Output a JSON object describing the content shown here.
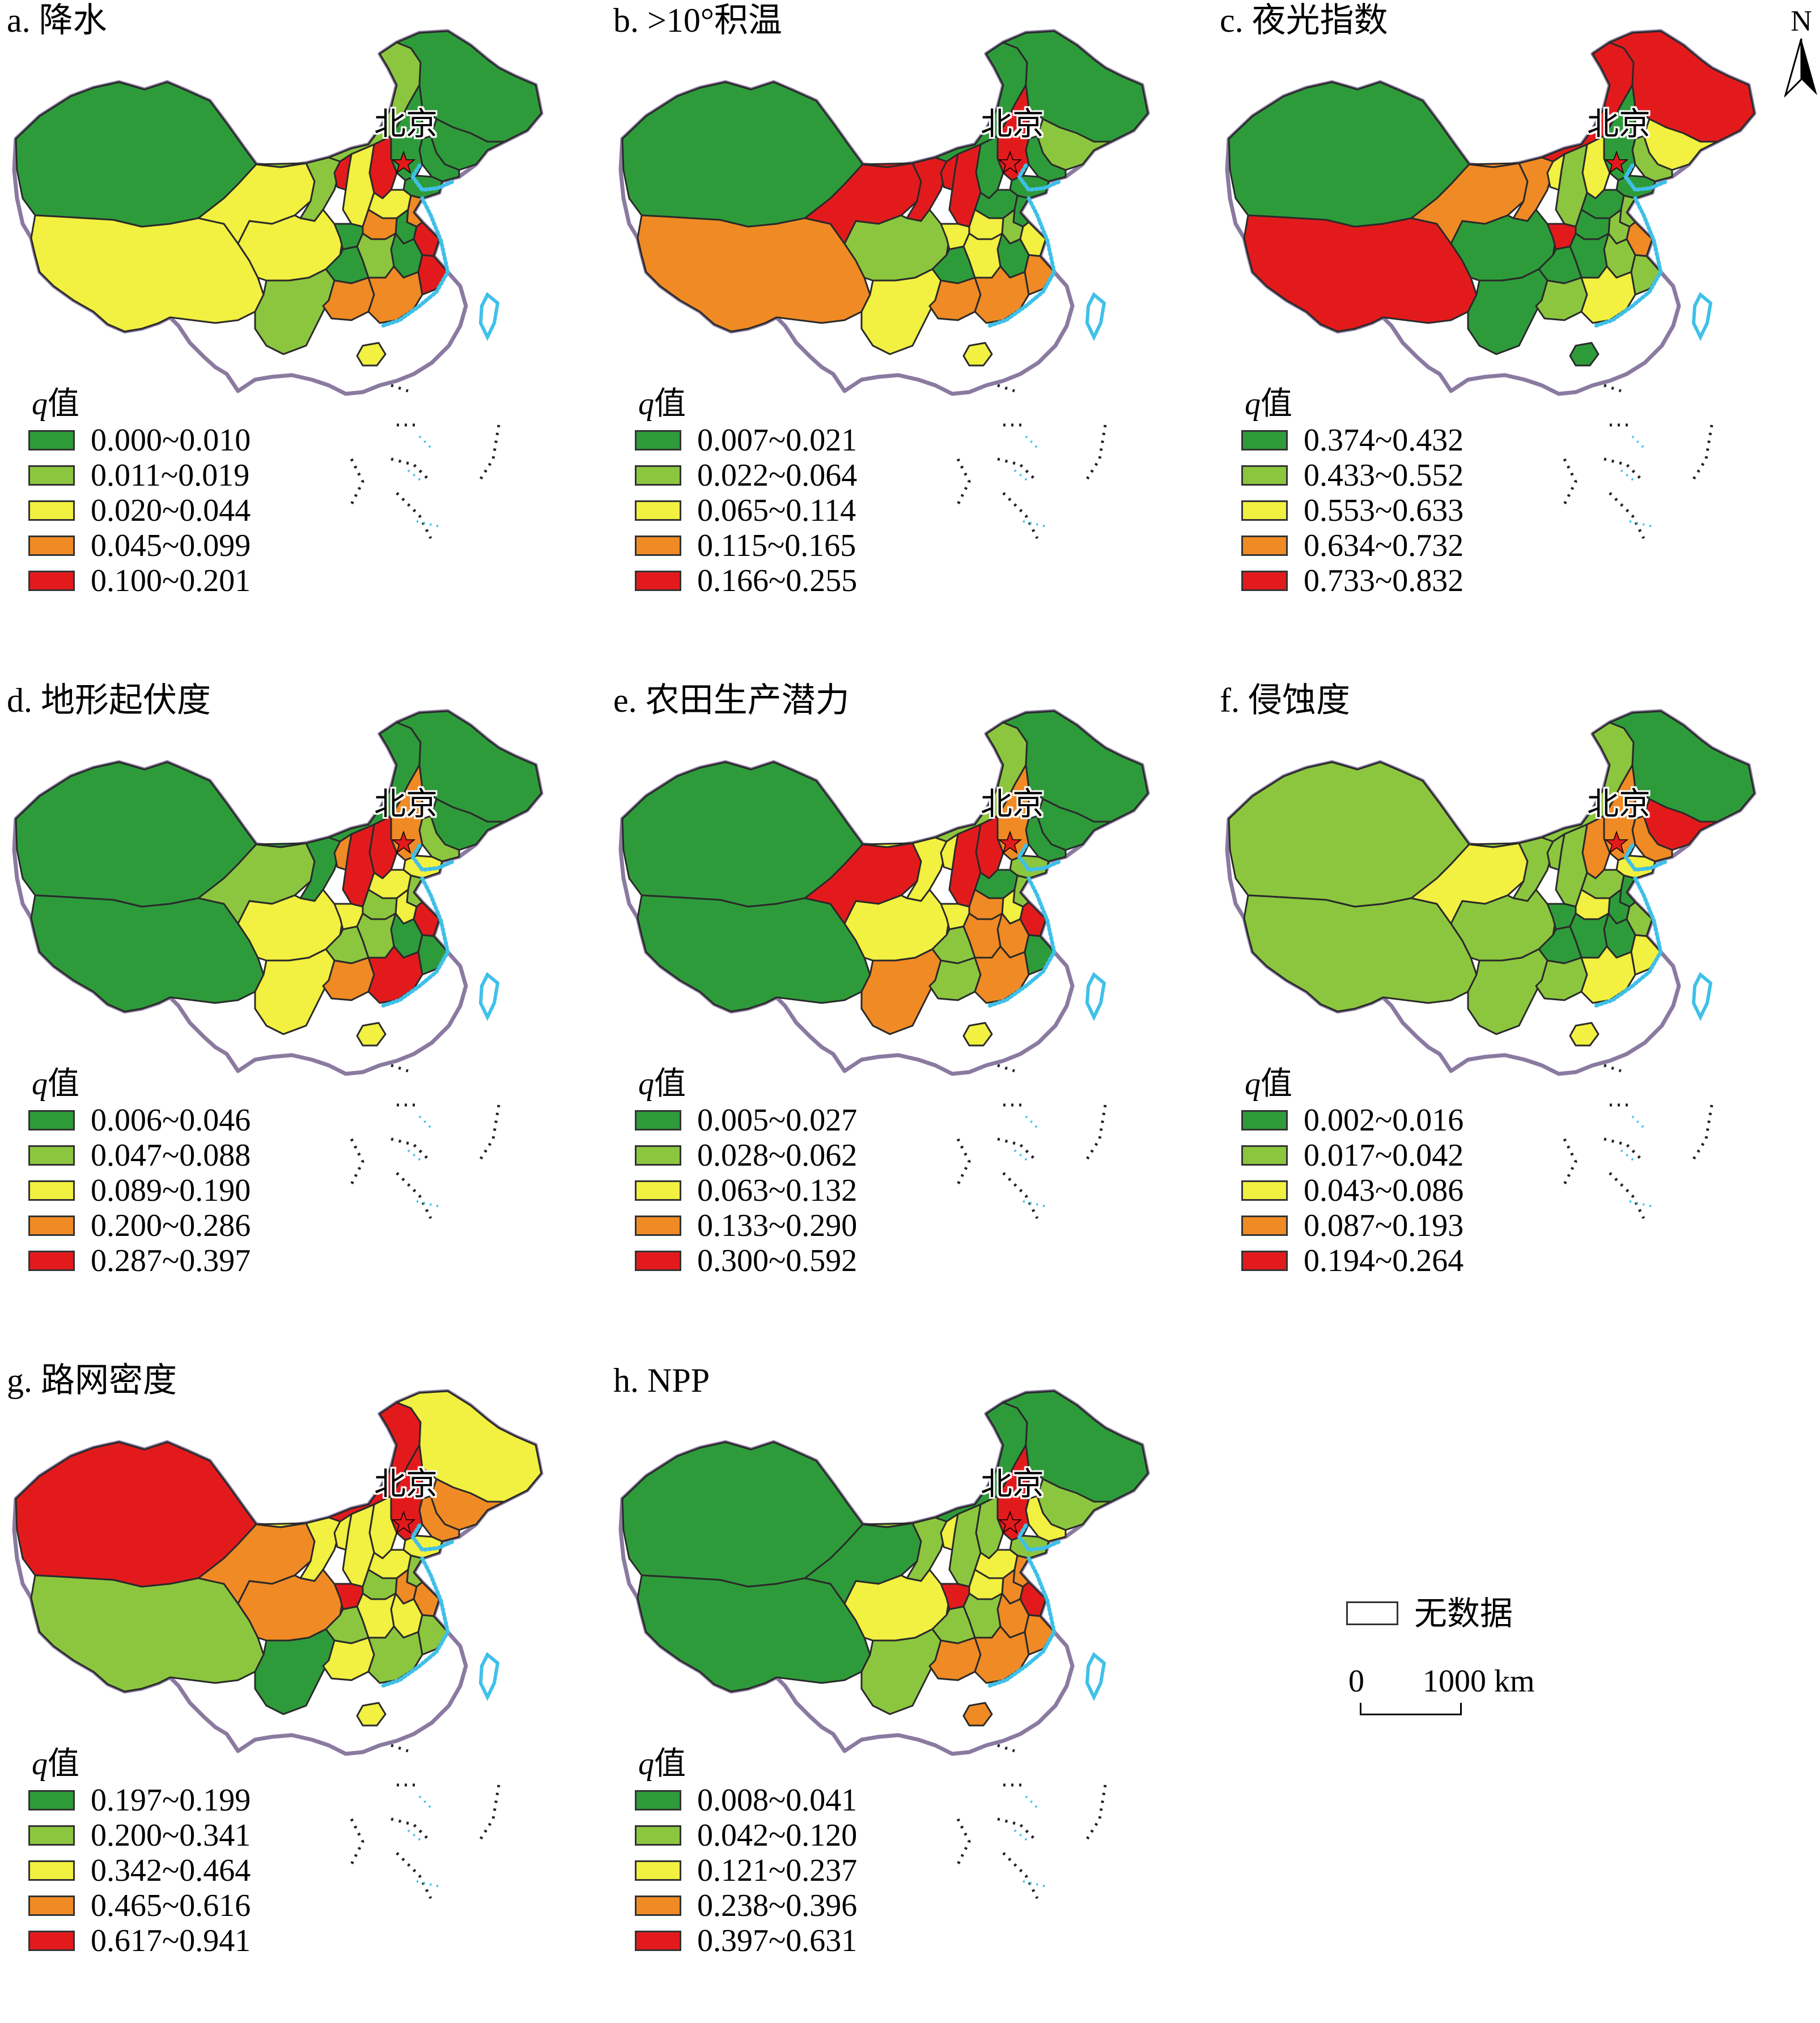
{
  "beijing_label": "北京",
  "legend_title_q": "q",
  "legend_title_rest": "值",
  "class_colors": [
    "#2e9b3b",
    "#8cc63f",
    "#f2f040",
    "#f08a24",
    "#e31a1c"
  ],
  "panels": [
    {
      "id": "a",
      "title": "a. 降水",
      "classes": [
        "0.000~0.010",
        "0.011~0.019",
        "0.020~0.044",
        "0.045~0.099",
        "0.100~0.201"
      ]
    },
    {
      "id": "b",
      "title": "b. >10°积温",
      "classes": [
        "0.007~0.021",
        "0.022~0.064",
        "0.065~0.114",
        "0.115~0.165",
        "0.166~0.255"
      ]
    },
    {
      "id": "c",
      "title": "c. 夜光指数",
      "classes": [
        "0.374~0.432",
        "0.433~0.552",
        "0.553~0.633",
        "0.634~0.732",
        "0.733~0.832"
      ]
    },
    {
      "id": "d",
      "title": "d. 地形起伏度",
      "classes": [
        "0.006~0.046",
        "0.047~0.088",
        "0.089~0.190",
        "0.200~0.286",
        "0.287~0.397"
      ]
    },
    {
      "id": "e",
      "title": "e. 农田生产潜力",
      "classes": [
        "0.005~0.027",
        "0.028~0.062",
        "0.063~0.132",
        "0.133~0.290",
        "0.300~0.592"
      ]
    },
    {
      "id": "f",
      "title": "f. 侵蚀度",
      "classes": [
        "0.002~0.016",
        "0.017~0.042",
        "0.043~0.086",
        "0.087~0.193",
        "0.194~0.264"
      ]
    },
    {
      "id": "g",
      "title": "g. 路网密度",
      "classes": [
        "0.197~0.199",
        "0.200~0.341",
        "0.342~0.464",
        "0.465~0.616",
        "0.617~0.941"
      ]
    },
    {
      "id": "h",
      "title": "h. NPP",
      "classes": [
        "0.008~0.041",
        "0.042~0.120",
        "0.121~0.237",
        "0.238~0.396",
        "0.397~0.631"
      ]
    }
  ],
  "north_label": "N",
  "no_data_label": "无数据",
  "scale_start": "0",
  "scale_end": "1000 km"
}
